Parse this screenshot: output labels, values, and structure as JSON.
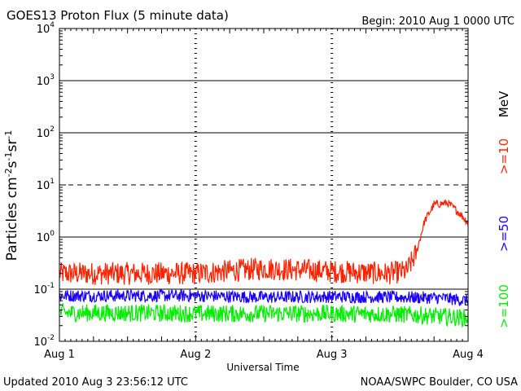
{
  "header": {
    "title": "GOES13 Proton Flux (5 minute data)",
    "begin": "Begin: 2010 Aug 1 0000 UTC"
  },
  "footer": {
    "updated": "Updated 2010 Aug  3 23:56:12 UTC",
    "credit": "NOAA/SWPC Boulder, CO USA"
  },
  "legend": {
    "unit": "MeV",
    "items": [
      {
        "label": ">=10",
        "color": "#ff2200"
      },
      {
        "label": ">=50",
        "color": "#1a00ff"
      },
      {
        "label": ">=100",
        "color": "#00ee00"
      }
    ]
  },
  "chart_data": {
    "type": "line",
    "title": "GOES13 Proton Flux (5 minute data)",
    "xlabel": "Universal Time",
    "ylabel": "Particles cm-2s-1sr-1",
    "yscale": "log",
    "ylim": [
      0.01,
      10000
    ],
    "xlim_days": [
      0,
      3
    ],
    "x_ticks": [
      "Aug 1",
      "Aug 2",
      "Aug 3",
      "Aug 4"
    ],
    "y_ticks": [
      "10-2",
      "10-1",
      "100",
      "101",
      "102",
      "103",
      "104"
    ],
    "threshold_lines": [
      {
        "value": 10,
        "style": "dashed"
      },
      {
        "value": 1,
        "style": "solid"
      },
      {
        "value": 100,
        "style": "solid"
      },
      {
        "value": 1000,
        "style": "solid"
      },
      {
        "value": 0.1,
        "style": "solid"
      }
    ],
    "series": [
      {
        "name": ">=10",
        "color": "#ff2200",
        "points": [
          [
            0.0,
            0.2
          ],
          [
            0.5,
            0.2
          ],
          [
            1.0,
            0.2
          ],
          [
            1.5,
            0.25
          ],
          [
            2.0,
            0.22
          ],
          [
            2.4,
            0.2
          ],
          [
            2.55,
            0.22
          ],
          [
            2.62,
            0.5
          ],
          [
            2.68,
            2.0
          ],
          [
            2.75,
            4.2
          ],
          [
            2.85,
            4.5
          ],
          [
            2.93,
            3.0
          ],
          [
            3.0,
            1.9
          ]
        ]
      },
      {
        "name": ">=50",
        "color": "#1a00ff",
        "points": [
          [
            0.0,
            0.075
          ],
          [
            0.5,
            0.075
          ],
          [
            1.0,
            0.075
          ],
          [
            1.5,
            0.07
          ],
          [
            2.0,
            0.072
          ],
          [
            2.5,
            0.07
          ],
          [
            2.8,
            0.068
          ],
          [
            3.0,
            0.06
          ]
        ]
      },
      {
        "name": ">=100",
        "color": "#00ee00",
        "points": [
          [
            0.0,
            0.035
          ],
          [
            0.5,
            0.035
          ],
          [
            1.0,
            0.034
          ],
          [
            1.5,
            0.034
          ],
          [
            2.0,
            0.034
          ],
          [
            2.5,
            0.033
          ],
          [
            2.8,
            0.03
          ],
          [
            3.0,
            0.028
          ]
        ]
      }
    ]
  }
}
